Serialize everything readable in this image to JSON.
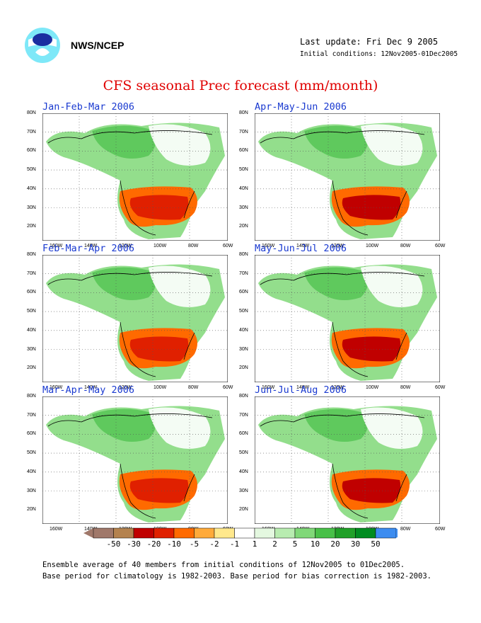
{
  "header": {
    "agency": "NWS/NCEP",
    "last_update": "Last update: Fri Dec 9 2005",
    "initial_conditions": "Initial conditions: 12Nov2005-01Dec2005",
    "title": "CFS seasonal Prec forecast (mm/month)"
  },
  "panels": [
    {
      "label": "Jan-Feb-Mar 2006"
    },
    {
      "label": "Apr-May-Jun 2006"
    },
    {
      "label": "Feb-Mar-Apr 2006"
    },
    {
      "label": "May-Jun-Jul 2006"
    },
    {
      "label": "Mar-Apr-May 2006"
    },
    {
      "label": "Jun-Jul-Aug 2006"
    }
  ],
  "axes": {
    "lat_ticks": [
      "80N",
      "70N",
      "60N",
      "50N",
      "40N",
      "30N",
      "20N"
    ],
    "lon_ticks": [
      "160W",
      "140W",
      "120W",
      "100W",
      "80W",
      "60W"
    ]
  },
  "legend": {
    "labels": [
      "-50",
      "-30",
      "-20",
      "-10",
      "-5",
      "-2",
      "-1",
      "1",
      "2",
      "5",
      "10",
      "20",
      "30",
      "50"
    ],
    "colors": [
      "#a0786a",
      "#b4824e",
      "#c00000",
      "#e02000",
      "#ff6a00",
      "#ffaa3a",
      "#ffe88c",
      "#ffffff",
      "#e4f8e0",
      "#b8ecb0",
      "#80d878",
      "#48c048",
      "#20a028",
      "#008c20",
      "#3c8cf0"
    ]
  },
  "notes": {
    "line1": "Ensemble average of 40 members from initial conditions of 12Nov2005 to 01Dec2005.",
    "line2": "Base period for climatology is 1982-2003. Base period for bias correction is 1982-2003."
  }
}
